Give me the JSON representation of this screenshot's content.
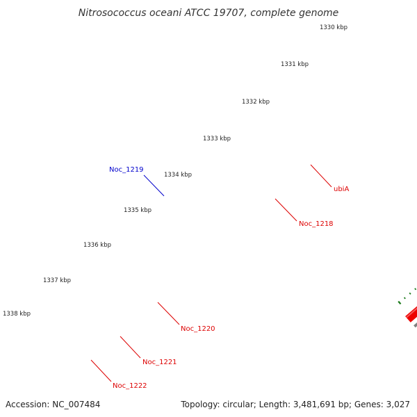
{
  "title": "Nitrosococcus oceani ATCC 19707, complete genome",
  "accession": "Accession: NC_007484",
  "summary": "Topology: circular; Length: 3,481,691 bp; Genes: 3,027",
  "scale": {
    "labels": [
      "1330 kbp",
      "1331 kbp",
      "1332 kbp",
      "1333 kbp",
      "1334 kbp",
      "1335 kbp",
      "1336 kbp",
      "1337 kbp",
      "1338 kbp"
    ]
  },
  "colors": {
    "backbone": "#808080",
    "cds": "#ee0000",
    "blue": "#0000ee",
    "pink": "#ee1aa0",
    "khaki": "#b8b07a",
    "cyan": "#00e8ee",
    "orange": "#f09000",
    "green": "#30c030",
    "tick": "#1a7a1a",
    "label_red": "#dd0000",
    "label_blue": "#0000cc"
  },
  "gene_labels": [
    {
      "text": "Noc_1219",
      "color_key": "label_blue"
    },
    {
      "text": "ubiA",
      "color_key": "label_red"
    },
    {
      "text": "Noc_1218",
      "color_key": "label_red"
    },
    {
      "text": "Noc_1220",
      "color_key": "label_red"
    },
    {
      "text": "Noc_1221",
      "color_key": "label_red"
    },
    {
      "text": "Noc_1222",
      "color_key": "label_red"
    }
  ]
}
